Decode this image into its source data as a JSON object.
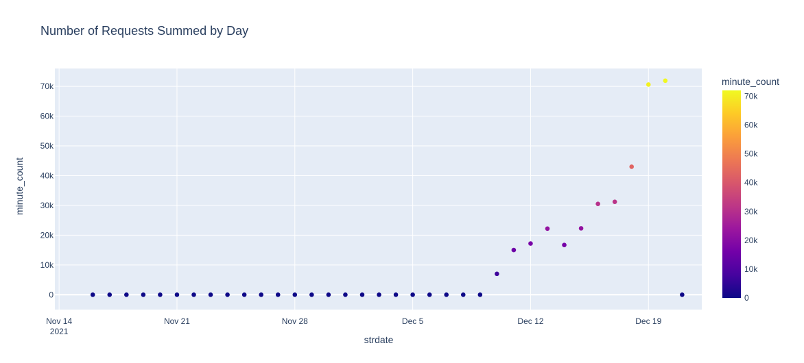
{
  "chart_data": {
    "type": "scatter",
    "title": "Number of Requests Summed by Day",
    "xlabel": "strdate",
    "ylabel": "minute_count",
    "x_ticks": [
      {
        "value": "2021-11-14",
        "label": "Nov 14",
        "sublabel": "2021"
      },
      {
        "value": "2021-11-21",
        "label": "Nov 21",
        "sublabel": ""
      },
      {
        "value": "2021-11-28",
        "label": "Nov 28",
        "sublabel": ""
      },
      {
        "value": "2021-12-05",
        "label": "Dec 5",
        "sublabel": ""
      },
      {
        "value": "2021-12-12",
        "label": "Dec 12",
        "sublabel": ""
      },
      {
        "value": "2021-12-19",
        "label": "Dec 19",
        "sublabel": ""
      }
    ],
    "xlim": [
      "2021-11-13T18:00",
      "2021-12-22T04:00"
    ],
    "ylim": [
      -5000,
      76000
    ],
    "y_ticks": [
      0,
      10000,
      20000,
      30000,
      40000,
      50000,
      60000,
      70000
    ],
    "y_tick_labels": [
      "0",
      "10k",
      "20k",
      "30k",
      "40k",
      "50k",
      "60k",
      "70k"
    ],
    "grid": true,
    "x": [
      "2021-11-16",
      "2021-11-17",
      "2021-11-18",
      "2021-11-19",
      "2021-11-20",
      "2021-11-21",
      "2021-11-22",
      "2021-11-23",
      "2021-11-24",
      "2021-11-25",
      "2021-11-26",
      "2021-11-27",
      "2021-11-28",
      "2021-11-29",
      "2021-11-30",
      "2021-12-01",
      "2021-12-02",
      "2021-12-03",
      "2021-12-04",
      "2021-12-05",
      "2021-12-06",
      "2021-12-07",
      "2021-12-08",
      "2021-12-09",
      "2021-12-10",
      "2021-12-11",
      "2021-12-12",
      "2021-12-13",
      "2021-12-14",
      "2021-12-15",
      "2021-12-16",
      "2021-12-17",
      "2021-12-18",
      "2021-12-19",
      "2021-12-20",
      "2021-12-21"
    ],
    "y": [
      0,
      0,
      0,
      0,
      0,
      0,
      0,
      0,
      0,
      0,
      0,
      0,
      0,
      0,
      0,
      0,
      0,
      0,
      0,
      0,
      0,
      0,
      0,
      0,
      7000,
      15000,
      17200,
      22200,
      16700,
      22300,
      30500,
      31200,
      43000,
      70600,
      71900,
      0
    ],
    "colorbar": {
      "title": "minute_count",
      "min": 0,
      "max": 72000,
      "ticks": [
        0,
        10000,
        20000,
        30000,
        40000,
        50000,
        60000,
        70000
      ],
      "tick_labels": [
        "0",
        "10k",
        "20k",
        "30k",
        "40k",
        "50k",
        "60k",
        "70k"
      ],
      "colorscale": [
        "#0d0887",
        "#46039f",
        "#7201a8",
        "#9c179e",
        "#bd3786",
        "#d8576b",
        "#ed7953",
        "#fb9f3a",
        "#fdca26",
        "#f0f921"
      ]
    },
    "colors": {
      "plot_bg": "#e5ecf6",
      "grid": "#ffffff",
      "text": "#2a3f5f"
    }
  }
}
